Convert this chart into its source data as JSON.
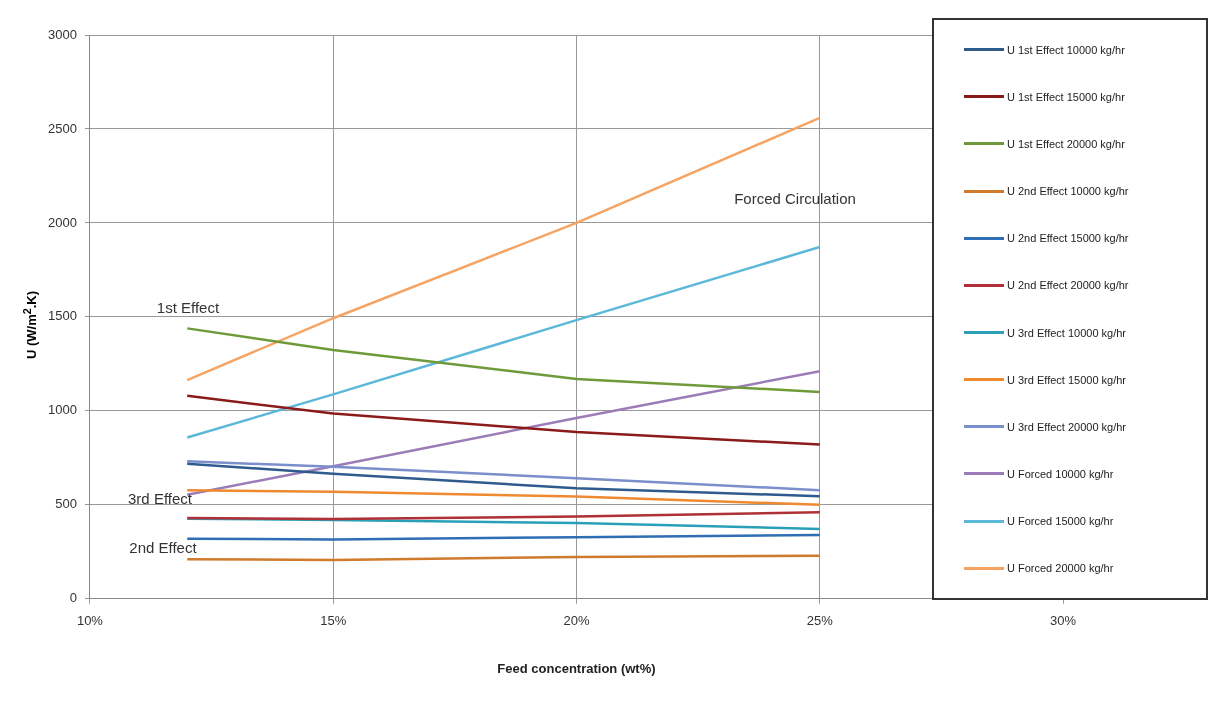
{
  "chart_data": {
    "type": "line",
    "xlabel": "Feed concentration (wt%)",
    "ylabel": "U (W/m$^{2}$.K)",
    "xlim": [
      10,
      30
    ],
    "xticks": [
      {
        "value": 10,
        "label": "10%"
      },
      {
        "value": 15,
        "label": "15%"
      },
      {
        "value": 20,
        "label": "20%"
      },
      {
        "value": 25,
        "label": "25%"
      },
      {
        "value": 30,
        "label": "30%"
      }
    ],
    "ylim": [
      0,
      3000
    ],
    "yticks": [
      0,
      500,
      1000,
      1500,
      2000,
      2500,
      3000
    ],
    "x": [
      12,
      15,
      20,
      25
    ],
    "series": [
      {
        "name": "U 1st Effect 10000 kg/hr",
        "color": "#2e5a8c",
        "values": [
          718,
          666,
          588,
          546
        ]
      },
      {
        "name": "U 1st Effect 15000 kg/hr",
        "color": "#8b1a1a",
        "values": [
          1080,
          986,
          887,
          821
        ]
      },
      {
        "name": "U 1st Effect 20000 kg/hr",
        "color": "#6f9a3a",
        "values": [
          1439,
          1324,
          1170,
          1101
        ]
      },
      {
        "name": "U 2nd Effect 10000 kg/hr",
        "color": "#d07a2c",
        "values": [
          210,
          207,
          222,
          229
        ]
      },
      {
        "name": "U 2nd Effect 15000 kg/hr",
        "color": "#2f6db5",
        "values": [
          320,
          315,
          328,
          340
        ]
      },
      {
        "name": "U 2nd Effect 20000 kg/hr",
        "color": "#b03038",
        "values": [
          430,
          425,
          438,
          461
        ]
      },
      {
        "name": "U 3rd Effect 10000 kg/hr",
        "color": "#2aa0b8",
        "values": [
          426,
          419,
          403,
          372
        ]
      },
      {
        "name": "U 3rd Effect 15000 kg/hr",
        "color": "#f08a30",
        "values": [
          578,
          569,
          544,
          500
        ]
      },
      {
        "name": "U 3rd Effect 20000 kg/hr",
        "color": "#7a8fcc",
        "values": [
          732,
          702,
          642,
          578
        ]
      },
      {
        "name": "U Forced 10000 kg/hr",
        "color": "#9b7cb8",
        "values": [
          554,
          705,
          962,
          1211
        ]
      },
      {
        "name": "U Forced 15000 kg/hr",
        "color": "#5cb8d8",
        "values": [
          858,
          1088,
          1483,
          1872
        ]
      },
      {
        "name": "U Forced 20000 kg/hr",
        "color": "#f5a464",
        "values": [
          1164,
          1493,
          2000,
          2559
        ]
      }
    ],
    "annotations": [
      "1st Effect",
      "3rd Effect",
      "2nd Effect",
      "Forced Circulation"
    ],
    "grid": true,
    "legend": "right",
    "marker": "none",
    "line_style": "solid"
  }
}
